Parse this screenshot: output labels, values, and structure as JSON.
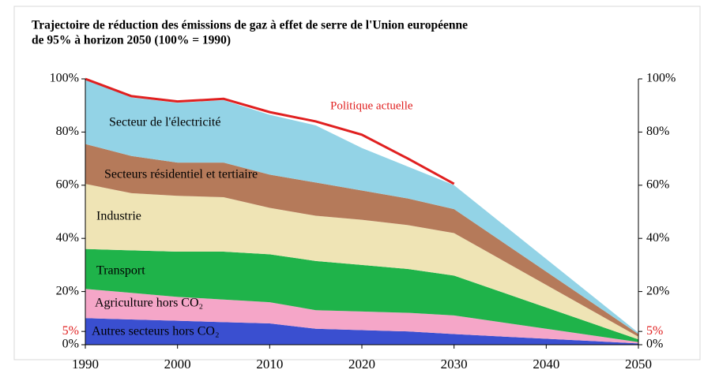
{
  "chart_data": {
    "type": "stacked_area",
    "title": [
      "Trajectoire de réduction des émissions de gaz à effet de serre de l'Union européenne",
      "de 95% à horizon 2050 (100% = 1990)"
    ],
    "x": [
      1990,
      1995,
      2000,
      2005,
      2010,
      2015,
      2020,
      2025,
      2030,
      2050
    ],
    "xlim": [
      1990,
      2050
    ],
    "xticks": [
      1990,
      2000,
      2010,
      2020,
      2030,
      2040,
      2050
    ],
    "ylim": [
      0,
      100
    ],
    "yticks": [
      {
        "value": 0,
        "label": "0%"
      },
      {
        "value": 5,
        "label": "5%",
        "color": "#e02020"
      },
      {
        "value": 20,
        "label": "20%"
      },
      {
        "value": 40,
        "label": "40%"
      },
      {
        "value": 60,
        "label": "60%"
      },
      {
        "value": 80,
        "label": "80%"
      },
      {
        "value": 100,
        "label": "100%"
      }
    ],
    "series": [
      {
        "name": "Autres secteurs hors CO₂",
        "color": "#3a4fd0",
        "values": [
          10,
          9.5,
          9,
          8.5,
          8,
          6,
          5.5,
          5,
          4,
          0.5
        ]
      },
      {
        "name": "Agriculture hors CO₂",
        "color": "#f5a6c8",
        "values": [
          11,
          10,
          9,
          8.5,
          8,
          7,
          7,
          7,
          7,
          0.5
        ]
      },
      {
        "name": "Transport",
        "color": "#1fb34a",
        "values": [
          15,
          16,
          17,
          18,
          18,
          18.5,
          17.5,
          16.5,
          15,
          1
        ]
      },
      {
        "name": "Industrie",
        "color": "#efe4b5",
        "values": [
          24.5,
          21.5,
          21,
          20.5,
          17.5,
          17,
          17,
          16.5,
          16,
          1
        ]
      },
      {
        "name": "Secteurs résidentiel et tertiaire",
        "color": "#b57a5a",
        "values": [
          15,
          14,
          12.5,
          13,
          12.5,
          12.5,
          11,
          10,
          9,
          1
        ]
      },
      {
        "name": "Secteur de l'électricité",
        "color": "#93d3e6",
        "values": [
          24.5,
          22,
          22.5,
          23.5,
          22.5,
          21.5,
          16,
          12,
          9,
          0.5
        ]
      }
    ],
    "line": {
      "name": "Politique actuelle",
      "color": "#e02020",
      "x": [
        1990,
        1995,
        2000,
        2005,
        2010,
        2015,
        2020,
        2025,
        2030
      ],
      "values": [
        100,
        93.5,
        91.5,
        92.5,
        87.5,
        84,
        79,
        70,
        60.5
      ]
    }
  }
}
